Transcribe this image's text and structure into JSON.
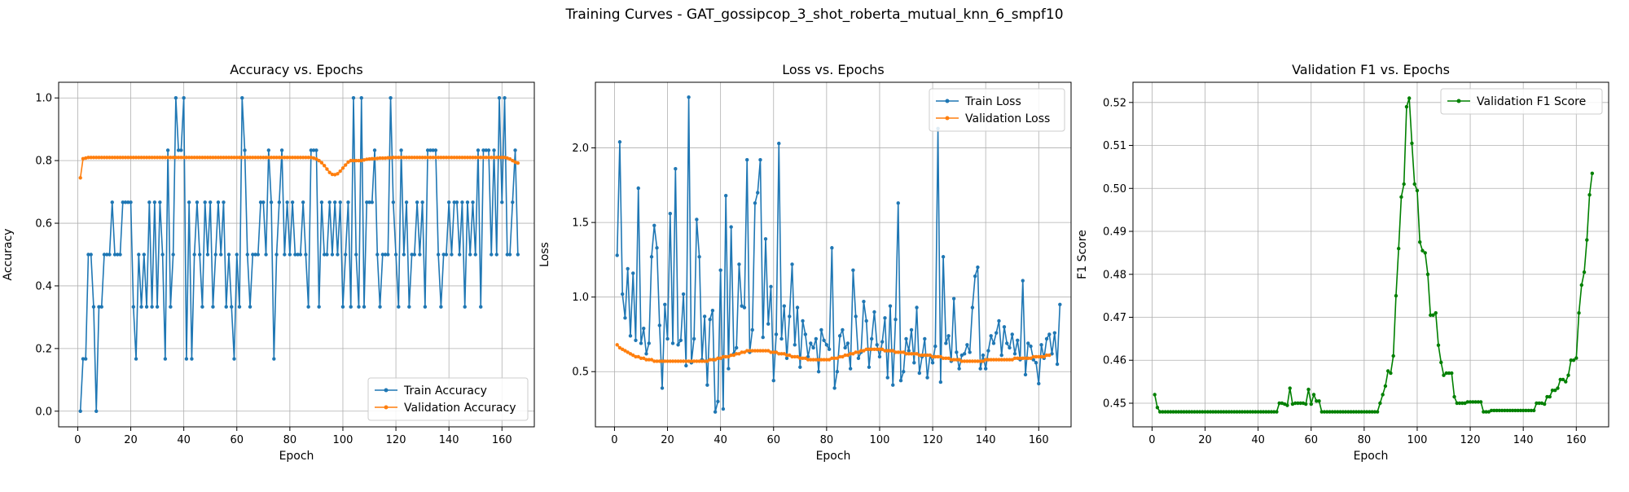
{
  "figure_title": "Training Curves - GAT_gossipcop_3_shot_roberta_mutual_knn_6_smpf10",
  "chart_data": [
    {
      "type": "line",
      "title": "Accuracy vs. Epochs",
      "xlabel": "Epoch",
      "ylabel": "Accuracy",
      "xlim": [
        -7.2,
        172.2
      ],
      "ylim": [
        -0.05,
        1.05
      ],
      "xticks": [
        0,
        20,
        40,
        60,
        80,
        100,
        120,
        140,
        160
      ],
      "yticks": [
        0.0,
        0.2,
        0.4,
        0.6,
        0.8,
        1.0
      ],
      "ytick_labels": [
        "0.0",
        "0.2",
        "0.4",
        "0.6",
        "0.8",
        "1.0"
      ],
      "grid": true,
      "legend_position": "lower-right",
      "series": [
        {
          "name": "Train Accuracy",
          "color": "#1f77b4",
          "values": [
            0.0,
            0.167,
            0.167,
            0.5,
            0.5,
            0.333,
            0.0,
            0.333,
            0.333,
            0.5,
            0.5,
            0.5,
            0.667,
            0.5,
            0.5,
            0.5,
            0.667,
            0.667,
            0.667,
            0.667,
            0.333,
            0.167,
            0.5,
            0.333,
            0.5,
            0.333,
            0.667,
            0.333,
            0.667,
            0.333,
            0.667,
            0.5,
            0.167,
            0.833,
            0.333,
            0.5,
            1.0,
            0.833,
            0.833,
            1.0,
            0.167,
            0.667,
            0.167,
            0.5,
            0.667,
            0.5,
            0.333,
            0.667,
            0.5,
            0.667,
            0.333,
            0.5,
            0.667,
            0.5,
            0.667,
            0.333,
            0.5,
            0.333,
            0.167,
            0.5,
            0.333,
            1.0,
            0.833,
            0.5,
            0.333,
            0.5,
            0.5,
            0.5,
            0.667,
            0.667,
            0.5,
            0.833,
            0.667,
            0.167,
            0.5,
            0.667,
            0.833,
            0.5,
            0.667,
            0.5,
            0.667,
            0.5,
            0.5,
            0.5,
            0.667,
            0.5,
            0.333,
            0.833,
            0.833,
            0.833,
            0.333,
            0.667,
            0.5,
            0.5,
            0.667,
            0.5,
            0.667,
            0.5,
            0.667,
            0.333,
            0.5,
            0.667,
            0.333,
            1.0,
            0.5,
            0.333,
            1.0,
            0.333,
            0.667,
            0.667,
            0.667,
            0.833,
            0.5,
            0.333,
            0.5,
            0.5,
            0.5,
            1.0,
            0.667,
            0.5,
            0.333,
            0.833,
            0.5,
            0.667,
            0.333,
            0.5,
            0.5,
            0.667,
            0.5,
            0.667,
            0.333,
            0.833,
            0.833,
            0.833,
            0.833,
            0.5,
            0.333,
            0.5,
            0.5,
            0.667,
            0.5,
            0.667,
            0.667,
            0.5,
            0.667,
            0.333,
            0.667,
            0.5,
            0.667,
            0.5,
            0.833,
            0.333,
            0.833,
            0.833,
            0.833,
            0.5,
            0.833,
            0.5,
            1.0,
            0.667,
            1.0,
            0.5,
            0.5,
            0.667,
            0.833,
            0.5
          ]
        },
        {
          "name": "Validation Accuracy",
          "color": "#ff7f0e",
          "values": [
            0.745,
            0.806,
            0.808,
            0.81,
            0.81,
            0.81,
            0.81,
            0.81,
            0.81,
            0.81,
            0.81,
            0.81,
            0.81,
            0.81,
            0.81,
            0.81,
            0.81,
            0.81,
            0.81,
            0.81,
            0.81,
            0.81,
            0.81,
            0.81,
            0.81,
            0.81,
            0.81,
            0.81,
            0.81,
            0.81,
            0.81,
            0.81,
            0.81,
            0.81,
            0.81,
            0.81,
            0.81,
            0.81,
            0.81,
            0.81,
            0.81,
            0.81,
            0.81,
            0.81,
            0.81,
            0.81,
            0.81,
            0.81,
            0.81,
            0.81,
            0.81,
            0.81,
            0.81,
            0.81,
            0.81,
            0.81,
            0.81,
            0.81,
            0.81,
            0.81,
            0.81,
            0.81,
            0.81,
            0.81,
            0.81,
            0.81,
            0.81,
            0.81,
            0.81,
            0.81,
            0.81,
            0.81,
            0.81,
            0.81,
            0.81,
            0.81,
            0.81,
            0.81,
            0.81,
            0.81,
            0.81,
            0.81,
            0.81,
            0.81,
            0.81,
            0.81,
            0.81,
            0.81,
            0.808,
            0.805,
            0.8,
            0.793,
            0.784,
            0.773,
            0.762,
            0.756,
            0.755,
            0.758,
            0.766,
            0.776,
            0.786,
            0.795,
            0.8,
            0.8,
            0.8,
            0.8,
            0.8,
            0.802,
            0.804,
            0.805,
            0.806,
            0.806,
            0.807,
            0.808,
            0.808,
            0.808,
            0.809,
            0.809,
            0.81,
            0.81,
            0.81,
            0.81,
            0.81,
            0.81,
            0.81,
            0.81,
            0.81,
            0.81,
            0.81,
            0.81,
            0.81,
            0.81,
            0.81,
            0.81,
            0.81,
            0.81,
            0.81,
            0.81,
            0.81,
            0.81,
            0.81,
            0.81,
            0.81,
            0.81,
            0.81,
            0.81,
            0.81,
            0.81,
            0.81,
            0.81,
            0.81,
            0.81,
            0.81,
            0.81,
            0.81,
            0.81,
            0.81,
            0.81,
            0.81,
            0.81,
            0.81,
            0.808,
            0.805,
            0.8,
            0.795,
            0.792
          ]
        }
      ]
    },
    {
      "type": "line",
      "title": "Loss vs. Epochs",
      "xlabel": "Epoch",
      "ylabel": "Loss",
      "xlim": [
        -7.2,
        172.2
      ],
      "ylim": [
        0.13,
        2.44
      ],
      "xticks": [
        0,
        20,
        40,
        60,
        80,
        100,
        120,
        140,
        160
      ],
      "yticks": [
        0.5,
        1.0,
        1.5,
        2.0
      ],
      "ytick_labels": [
        "0.5",
        "1.0",
        "1.5",
        "2.0"
      ],
      "grid": true,
      "legend_position": "upper-right",
      "series": [
        {
          "name": "Train Loss",
          "color": "#1f77b4",
          "values": [
            1.28,
            2.04,
            1.02,
            0.86,
            1.19,
            0.74,
            1.16,
            0.71,
            1.73,
            0.69,
            0.79,
            0.62,
            0.69,
            1.27,
            1.48,
            1.33,
            0.81,
            0.39,
            0.95,
            0.72,
            1.56,
            0.69,
            1.86,
            0.68,
            0.71,
            1.02,
            0.54,
            2.34,
            0.56,
            0.72,
            1.52,
            1.27,
            0.58,
            0.87,
            0.41,
            0.85,
            0.91,
            0.23,
            0.3,
            1.18,
            0.25,
            1.68,
            0.52,
            1.47,
            0.62,
            0.66,
            1.22,
            0.94,
            0.93,
            1.92,
            0.63,
            0.78,
            1.63,
            1.7,
            1.92,
            0.73,
            1.39,
            0.82,
            1.07,
            0.44,
            0.75,
            2.03,
            0.72,
            0.94,
            0.59,
            0.87,
            1.22,
            0.68,
            0.93,
            0.53,
            0.84,
            0.75,
            0.6,
            0.69,
            0.66,
            0.72,
            0.5,
            0.78,
            0.71,
            0.68,
            0.65,
            1.33,
            0.39,
            0.5,
            0.74,
            0.78,
            0.66,
            0.69,
            0.52,
            1.18,
            0.87,
            0.59,
            0.63,
            0.97,
            0.84,
            0.53,
            0.72,
            0.9,
            0.68,
            0.6,
            0.7,
            0.86,
            0.46,
            0.94,
            0.41,
            0.85,
            1.63,
            0.44,
            0.5,
            0.72,
            0.64,
            0.78,
            0.56,
            0.93,
            0.49,
            0.6,
            0.72,
            0.46,
            0.61,
            0.56,
            0.67,
            2.13,
            0.43,
            1.27,
            0.69,
            0.74,
            0.57,
            0.99,
            0.63,
            0.52,
            0.61,
            0.62,
            0.68,
            0.63,
            0.93,
            1.14,
            1.2,
            0.52,
            0.61,
            0.52,
            0.64,
            0.74,
            0.69,
            0.76,
            0.84,
            0.61,
            0.8,
            0.69,
            0.66,
            0.75,
            0.62,
            0.71,
            0.58,
            1.11,
            0.48,
            0.69,
            0.67,
            0.58,
            0.56,
            0.42,
            0.68,
            0.59,
            0.72,
            0.75,
            0.62,
            0.76,
            0.55,
            0.95
          ]
        },
        {
          "name": "Validation Loss",
          "color": "#ff7f0e",
          "values": [
            0.68,
            0.66,
            0.65,
            0.64,
            0.63,
            0.62,
            0.61,
            0.6,
            0.6,
            0.59,
            0.59,
            0.58,
            0.58,
            0.58,
            0.57,
            0.57,
            0.57,
            0.57,
            0.57,
            0.57,
            0.57,
            0.57,
            0.57,
            0.57,
            0.57,
            0.57,
            0.57,
            0.57,
            0.57,
            0.57,
            0.57,
            0.57,
            0.57,
            0.57,
            0.57,
            0.58,
            0.58,
            0.58,
            0.59,
            0.59,
            0.6,
            0.6,
            0.6,
            0.61,
            0.61,
            0.62,
            0.62,
            0.63,
            0.63,
            0.64,
            0.64,
            0.64,
            0.64,
            0.64,
            0.64,
            0.64,
            0.64,
            0.64,
            0.63,
            0.63,
            0.63,
            0.62,
            0.62,
            0.62,
            0.61,
            0.61,
            0.6,
            0.6,
            0.6,
            0.59,
            0.59,
            0.59,
            0.58,
            0.58,
            0.58,
            0.58,
            0.58,
            0.58,
            0.58,
            0.58,
            0.58,
            0.59,
            0.59,
            0.59,
            0.6,
            0.6,
            0.61,
            0.61,
            0.62,
            0.62,
            0.63,
            0.63,
            0.64,
            0.64,
            0.65,
            0.65,
            0.65,
            0.65,
            0.65,
            0.65,
            0.65,
            0.64,
            0.64,
            0.64,
            0.64,
            0.63,
            0.63,
            0.63,
            0.63,
            0.62,
            0.62,
            0.62,
            0.62,
            0.62,
            0.61,
            0.61,
            0.61,
            0.61,
            0.61,
            0.6,
            0.6,
            0.6,
            0.6,
            0.59,
            0.59,
            0.59,
            0.58,
            0.58,
            0.58,
            0.58,
            0.57,
            0.57,
            0.57,
            0.57,
            0.57,
            0.57,
            0.57,
            0.57,
            0.57,
            0.58,
            0.58,
            0.58,
            0.58,
            0.58,
            0.58,
            0.58,
            0.58,
            0.58,
            0.58,
            0.58,
            0.59,
            0.59,
            0.59,
            0.59,
            0.59,
            0.59,
            0.59,
            0.6,
            0.6,
            0.6,
            0.6,
            0.6,
            0.61,
            0.61
          ]
        }
      ]
    },
    {
      "type": "line",
      "title": "Validation F1 vs. Epochs",
      "xlabel": "Epoch",
      "ylabel": "F1 Score",
      "xlim": [
        -7.2,
        172.2
      ],
      "ylim": [
        0.4445,
        0.5247
      ],
      "xticks": [
        0,
        20,
        40,
        60,
        80,
        100,
        120,
        140,
        160
      ],
      "yticks": [
        0.45,
        0.46,
        0.47,
        0.48,
        0.49,
        0.5,
        0.51,
        0.52
      ],
      "ytick_labels": [
        "0.45",
        "0.46",
        "0.47",
        "0.48",
        "0.49",
        "0.50",
        "0.51",
        "0.52"
      ],
      "grid": true,
      "legend_position": "upper-right",
      "series": [
        {
          "name": "Validation F1 Score",
          "color": "#008000",
          "values": [
            0.452,
            0.449,
            0.448,
            0.448,
            0.448,
            0.448,
            0.448,
            0.448,
            0.448,
            0.448,
            0.448,
            0.448,
            0.448,
            0.448,
            0.448,
            0.448,
            0.448,
            0.448,
            0.448,
            0.448,
            0.448,
            0.448,
            0.448,
            0.448,
            0.448,
            0.448,
            0.448,
            0.448,
            0.448,
            0.448,
            0.448,
            0.448,
            0.448,
            0.448,
            0.448,
            0.448,
            0.448,
            0.448,
            0.448,
            0.448,
            0.448,
            0.448,
            0.448,
            0.448,
            0.448,
            0.448,
            0.448,
            0.45,
            0.45,
            0.4498,
            0.4495,
            0.4535,
            0.4498,
            0.45,
            0.45,
            0.45,
            0.45,
            0.4498,
            0.4532,
            0.4498,
            0.452,
            0.4505,
            0.4505,
            0.448,
            0.448,
            0.448,
            0.448,
            0.448,
            0.448,
            0.448,
            0.448,
            0.448,
            0.448,
            0.448,
            0.448,
            0.448,
            0.448,
            0.448,
            0.448,
            0.448,
            0.448,
            0.448,
            0.448,
            0.448,
            0.448,
            0.45,
            0.452,
            0.454,
            0.4575,
            0.457,
            0.461,
            0.475,
            0.486,
            0.498,
            0.501,
            0.519,
            0.521,
            0.5105,
            0.501,
            0.4995,
            0.4875,
            0.4855,
            0.485,
            0.48,
            0.4705,
            0.4705,
            0.471,
            0.4635,
            0.4595,
            0.4565,
            0.457,
            0.457,
            0.457,
            0.4515,
            0.45,
            0.45,
            0.45,
            0.45,
            0.4503,
            0.4503,
            0.4503,
            0.4503,
            0.4503,
            0.4503,
            0.448,
            0.448,
            0.448,
            0.4483,
            0.4483,
            0.4483,
            0.4483,
            0.4483,
            0.4483,
            0.4483,
            0.4483,
            0.4483,
            0.4483,
            0.4483,
            0.4483,
            0.4483,
            0.4483,
            0.4483,
            0.4483,
            0.4483,
            0.45,
            0.45,
            0.45,
            0.4498,
            0.4515,
            0.4515,
            0.453,
            0.453,
            0.4535,
            0.4555,
            0.4555,
            0.455,
            0.4565,
            0.46,
            0.46,
            0.4605,
            0.471,
            0.4775,
            0.4805,
            0.488,
            0.4985,
            0.5035
          ]
        }
      ]
    }
  ]
}
